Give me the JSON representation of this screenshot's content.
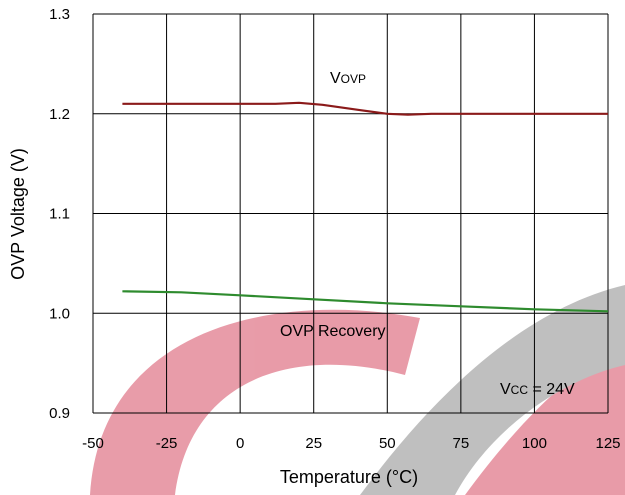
{
  "chart_data": {
    "type": "line",
    "xlabel": "Temperature (°C)",
    "ylabel": "OVP Voltage (V)",
    "xlim": [
      -50,
      125
    ],
    "ylim": [
      0.9,
      1.3
    ],
    "x_ticks": [
      "-50",
      "-25",
      "0",
      "25",
      "50",
      "75",
      "100",
      "125"
    ],
    "y_ticks": [
      "0.9",
      "1.0",
      "1.1",
      "1.2",
      "1.3"
    ],
    "grid": true,
    "series": [
      {
        "name": "VOVP",
        "name_main": "V",
        "name_sub": "OVP",
        "color": "#8b1a1a",
        "x": [
          -40,
          0,
          12,
          20,
          28,
          40,
          50,
          57,
          65,
          125
        ],
        "y": [
          1.21,
          1.21,
          1.21,
          1.211,
          1.209,
          1.204,
          1.2,
          1.199,
          1.2,
          1.2
        ]
      },
      {
        "name": "OVP  Recovery",
        "color": "#2e8b2e",
        "x": [
          -40,
          -20,
          0,
          25,
          50,
          75,
          100,
          125
        ],
        "y": [
          1.022,
          1.021,
          1.018,
          1.014,
          1.01,
          1.007,
          1.004,
          1.002
        ]
      }
    ],
    "annotation": {
      "main": "V",
      "sub": "CC",
      "suffix": " = 24V"
    }
  }
}
